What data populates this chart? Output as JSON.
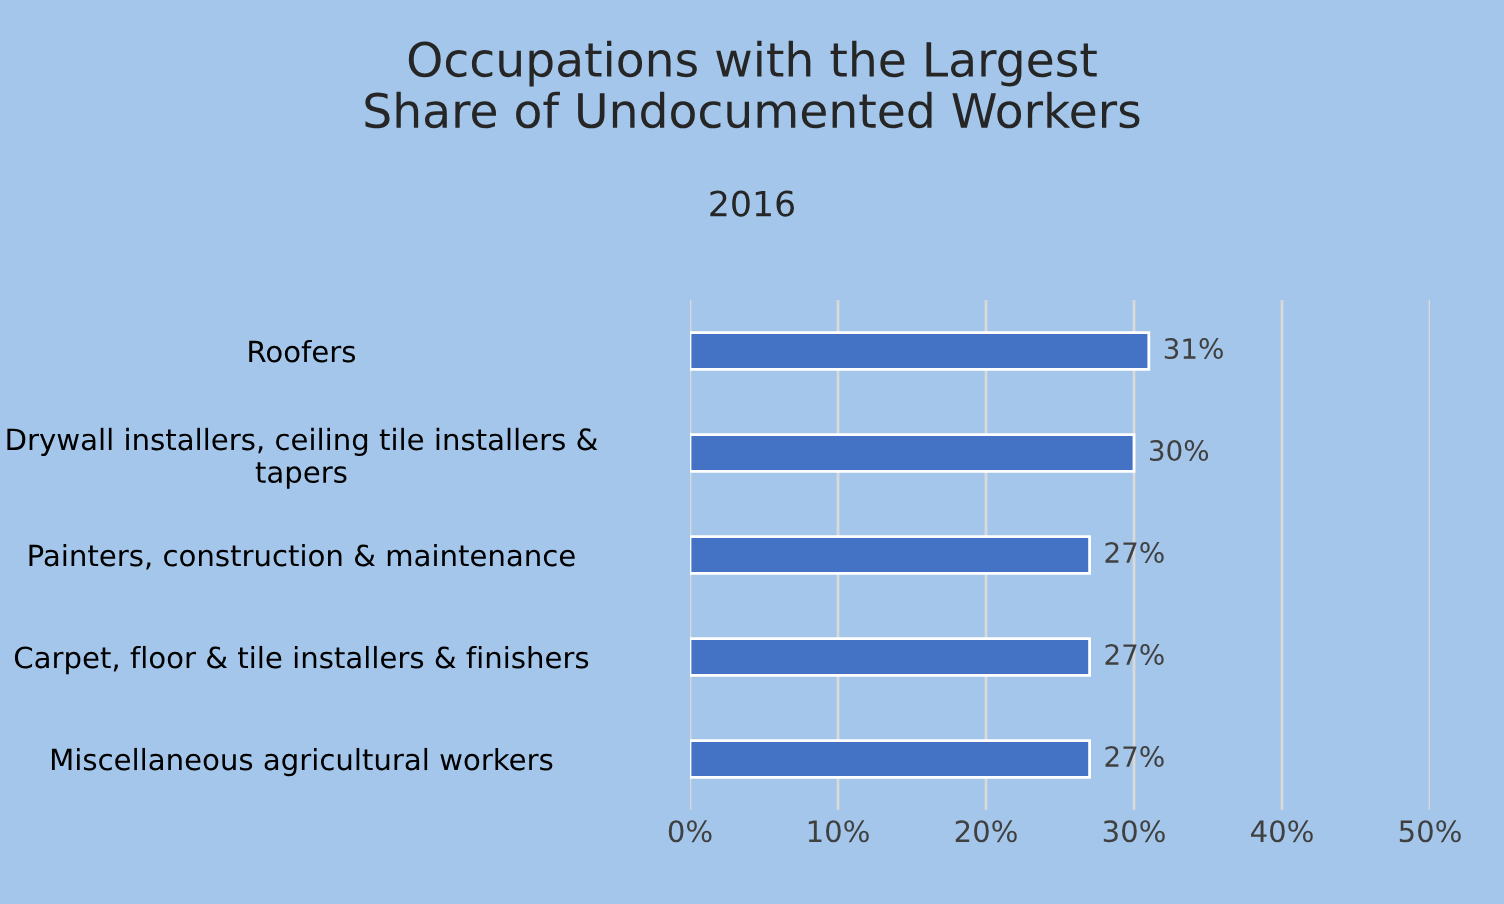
{
  "chart_data": {
    "type": "bar",
    "orientation": "horizontal",
    "title": "Occupations with the Largest Share of Undocumented Workers",
    "subtitle": "2016",
    "categories": [
      "Roofers",
      "Drywall installers, ceiling tile installers & tapers",
      "Painters, construction & maintenance",
      "Carpet, floor & tile installers & finishers",
      "Miscellaneous agricultural workers"
    ],
    "values": [
      31,
      30,
      27,
      27,
      27
    ],
    "color": "#4472c4",
    "value_labels": [
      "31%",
      "30%",
      "27%",
      "27%",
      "27%"
    ],
    "xlim": [
      0,
      50
    ],
    "xticks": [
      {
        "value": 0,
        "label": "0%"
      },
      {
        "value": 10,
        "label": "10%"
      },
      {
        "value": 20,
        "label": "20%"
      },
      {
        "value": 30,
        "label": "30%"
      },
      {
        "value": 40,
        "label": "40%"
      },
      {
        "value": 50,
        "label": "50%"
      }
    ],
    "grid": "x",
    "legend": false
  }
}
